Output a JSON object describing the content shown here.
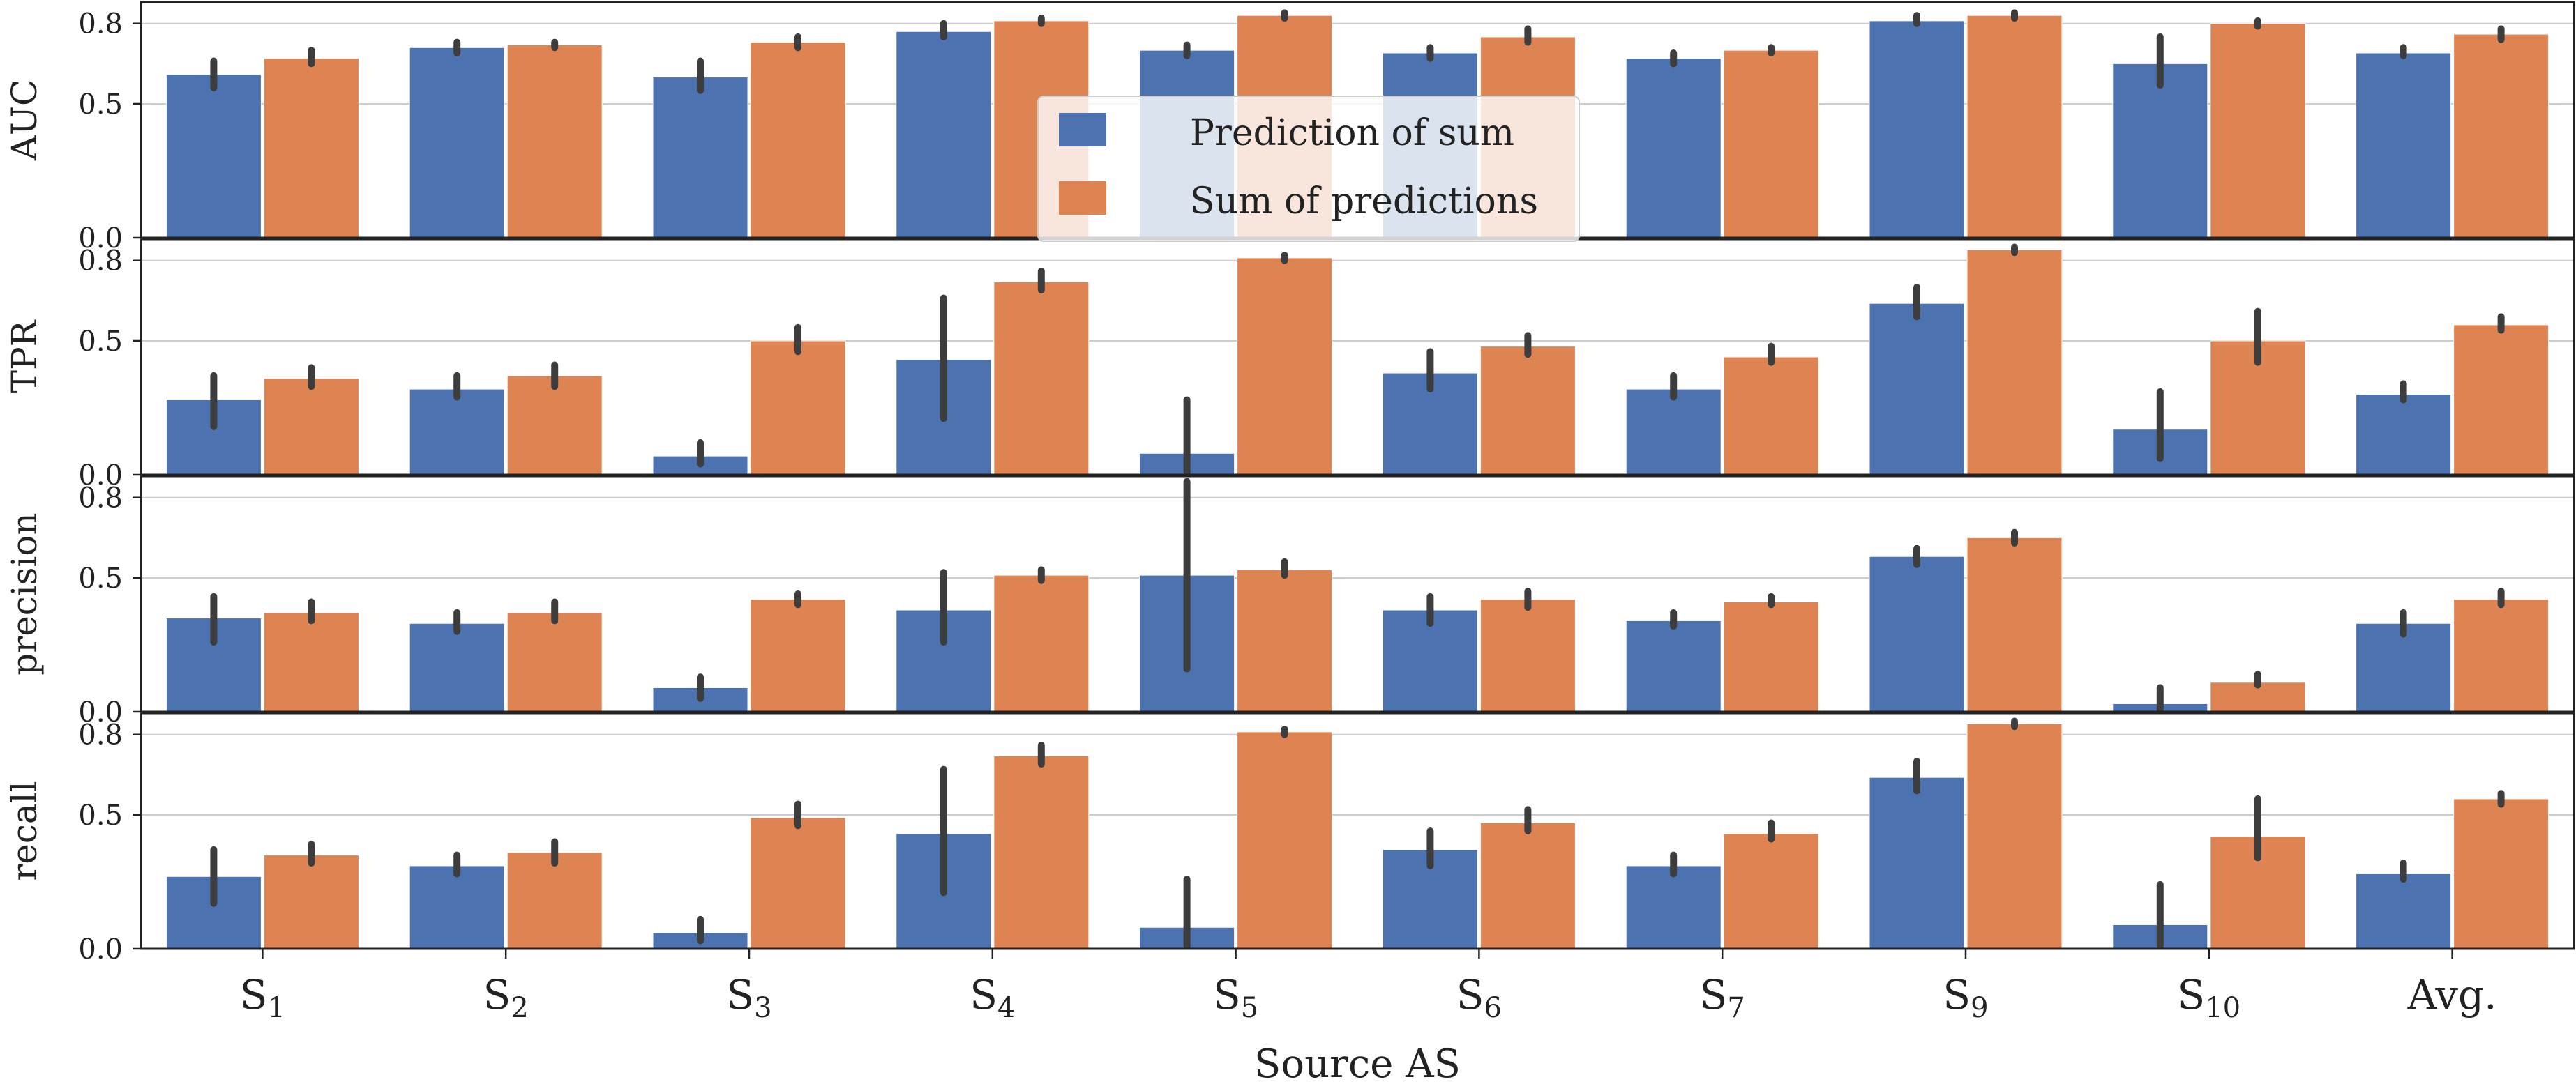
{
  "chart_data": {
    "type": "bar",
    "xlabel": "Source AS",
    "categories": [
      "S1",
      "S2",
      "S3",
      "S4",
      "S5",
      "S6",
      "S7",
      "S9",
      "S10",
      "Avg."
    ],
    "category_labels": [
      {
        "base": "S",
        "sub": "1"
      },
      {
        "base": "S",
        "sub": "2"
      },
      {
        "base": "S",
        "sub": "3"
      },
      {
        "base": "S",
        "sub": "4"
      },
      {
        "base": "S",
        "sub": "5"
      },
      {
        "base": "S",
        "sub": "6"
      },
      {
        "base": "S",
        "sub": "7"
      },
      {
        "base": "S",
        "sub": "9"
      },
      {
        "base": "S",
        "sub": "10"
      },
      {
        "base": "Avg.",
        "sub": ""
      }
    ],
    "legend": {
      "placement": "top-center",
      "entries": [
        "Prediction of sum",
        "Sum of predictions"
      ]
    },
    "colors": {
      "Prediction of sum": "#4c72b0",
      "Sum of predictions": "#dd8452",
      "error_bar": "#3d3d3d",
      "grid": "#cccccc"
    },
    "series_names": [
      "Prediction of sum",
      "Sum of predictions"
    ],
    "panels": [
      {
        "ylabel": "AUC",
        "ylim": [
          0,
          0.88
        ],
        "yticks": [
          0.0,
          0.5,
          0.8
        ],
        "ytick_labels": [
          "0.0",
          "0.5",
          "0.8"
        ],
        "series": [
          {
            "name": "Prediction of sum",
            "values": [
              0.61,
              0.71,
              0.6,
              0.77,
              0.7,
              0.69,
              0.67,
              0.81,
              0.65,
              0.69
            ],
            "err_low": [
              0.56,
              0.69,
              0.55,
              0.75,
              0.68,
              0.67,
              0.65,
              0.8,
              0.57,
              0.68
            ],
            "err_high": [
              0.66,
              0.73,
              0.66,
              0.8,
              0.72,
              0.71,
              0.69,
              0.83,
              0.75,
              0.71
            ]
          },
          {
            "name": "Sum of predictions",
            "values": [
              0.67,
              0.72,
              0.73,
              0.81,
              0.83,
              0.75,
              0.7,
              0.83,
              0.8,
              0.76
            ],
            "err_low": [
              0.65,
              0.71,
              0.71,
              0.8,
              0.82,
              0.73,
              0.69,
              0.82,
              0.79,
              0.74
            ],
            "err_high": [
              0.7,
              0.73,
              0.75,
              0.82,
              0.84,
              0.78,
              0.71,
              0.84,
              0.81,
              0.78
            ]
          }
        ]
      },
      {
        "ylabel": "TPR",
        "ylim": [
          0,
          0.88
        ],
        "yticks": [
          0.0,
          0.5,
          0.8
        ],
        "ytick_labels": [
          "0.0",
          "0.5",
          "0.8"
        ],
        "series": [
          {
            "name": "Prediction of sum",
            "values": [
              0.28,
              0.32,
              0.07,
              0.43,
              0.08,
              0.38,
              0.32,
              0.64,
              0.17,
              0.3
            ],
            "err_low": [
              0.18,
              0.29,
              0.04,
              0.21,
              0.01,
              0.32,
              0.29,
              0.59,
              0.06,
              0.28
            ],
            "err_high": [
              0.37,
              0.37,
              0.12,
              0.66,
              0.28,
              0.46,
              0.37,
              0.7,
              0.31,
              0.34
            ]
          },
          {
            "name": "Sum of predictions",
            "values": [
              0.36,
              0.37,
              0.5,
              0.72,
              0.81,
              0.48,
              0.44,
              0.84,
              0.5,
              0.56
            ],
            "err_low": [
              0.33,
              0.33,
              0.46,
              0.69,
              0.8,
              0.45,
              0.42,
              0.83,
              0.42,
              0.54
            ],
            "err_high": [
              0.4,
              0.41,
              0.55,
              0.76,
              0.82,
              0.52,
              0.48,
              0.85,
              0.61,
              0.59
            ]
          }
        ]
      },
      {
        "ylabel": "precision",
        "ylim": [
          0,
          0.88
        ],
        "yticks": [
          0.0,
          0.5,
          0.8
        ],
        "ytick_labels": [
          "0.0",
          "0.5",
          "0.8"
        ],
        "series": [
          {
            "name": "Prediction of sum",
            "values": [
              0.35,
              0.33,
              0.09,
              0.38,
              0.51,
              0.38,
              0.34,
              0.58,
              0.03,
              0.33
            ],
            "err_low": [
              0.26,
              0.3,
              0.05,
              0.26,
              0.16,
              0.33,
              0.32,
              0.55,
              0.0,
              0.29
            ],
            "err_high": [
              0.43,
              0.37,
              0.13,
              0.52,
              0.86,
              0.43,
              0.37,
              0.61,
              0.09,
              0.37
            ]
          },
          {
            "name": "Sum of predictions",
            "values": [
              0.37,
              0.37,
              0.42,
              0.51,
              0.53,
              0.42,
              0.41,
              0.65,
              0.11,
              0.42
            ],
            "err_low": [
              0.34,
              0.34,
              0.4,
              0.49,
              0.51,
              0.39,
              0.4,
              0.63,
              0.1,
              0.4
            ],
            "err_high": [
              0.41,
              0.41,
              0.44,
              0.53,
              0.56,
              0.45,
              0.43,
              0.67,
              0.14,
              0.45
            ]
          }
        ]
      },
      {
        "ylabel": "recall",
        "ylim": [
          0,
          0.88
        ],
        "yticks": [
          0.0,
          0.5,
          0.8
        ],
        "ytick_labels": [
          "0.0",
          "0.5",
          "0.8"
        ],
        "series": [
          {
            "name": "Prediction of sum",
            "values": [
              0.27,
              0.31,
              0.06,
              0.43,
              0.08,
              0.37,
              0.31,
              0.64,
              0.09,
              0.28
            ],
            "err_low": [
              0.17,
              0.28,
              0.03,
              0.21,
              0.01,
              0.31,
              0.28,
              0.59,
              0.01,
              0.26
            ],
            "err_high": [
              0.37,
              0.35,
              0.11,
              0.67,
              0.26,
              0.44,
              0.35,
              0.7,
              0.24,
              0.32
            ]
          },
          {
            "name": "Sum of predictions",
            "values": [
              0.35,
              0.36,
              0.49,
              0.72,
              0.81,
              0.47,
              0.43,
              0.84,
              0.42,
              0.56
            ],
            "err_low": [
              0.32,
              0.32,
              0.46,
              0.69,
              0.8,
              0.44,
              0.41,
              0.83,
              0.34,
              0.54
            ],
            "err_high": [
              0.39,
              0.4,
              0.54,
              0.76,
              0.82,
              0.52,
              0.47,
              0.85,
              0.56,
              0.58
            ]
          }
        ]
      }
    ]
  }
}
